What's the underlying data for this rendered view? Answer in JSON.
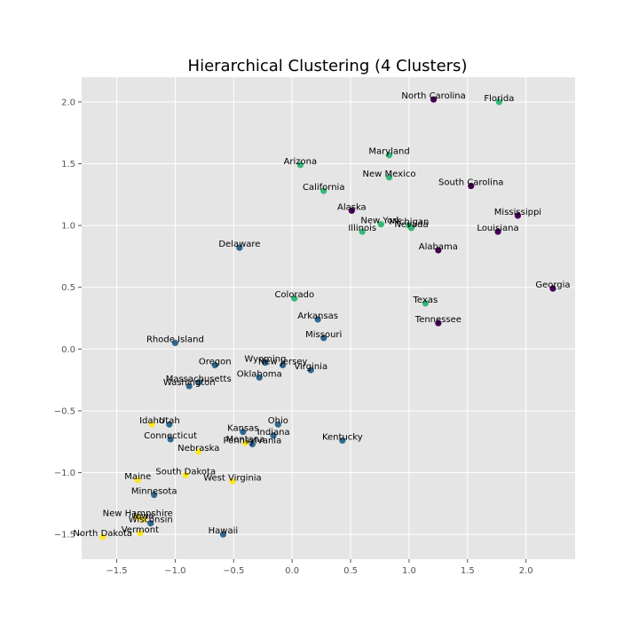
{
  "chart_data": {
    "type": "scatter",
    "title": "Hierarchical Clustering (4 Clusters)",
    "xlabel": "",
    "ylabel": "",
    "xlim": [
      -1.8,
      2.42
    ],
    "ylim": [
      -1.7,
      2.2
    ],
    "xticks": [
      -1.5,
      -1.0,
      -0.5,
      0.0,
      0.5,
      1.0,
      1.5,
      2.0
    ],
    "xtick_labels": [
      "−1.5",
      "−1.0",
      "−0.5",
      "0.0",
      "0.5",
      "1.0",
      "1.5",
      "2.0"
    ],
    "yticks": [
      -1.5,
      -1.0,
      -0.5,
      0.0,
      0.5,
      1.0,
      1.5,
      2.0
    ],
    "ytick_labels": [
      "−1.5",
      "−1.0",
      "−0.5",
      "0.0",
      "0.5",
      "1.0",
      "1.5",
      "2.0"
    ],
    "grid": true,
    "cluster_colors": {
      "0": "#440154",
      "1": "#31688e",
      "2": "#35b779",
      "3": "#fde725"
    },
    "points": [
      {
        "label": "North Carolina",
        "x": 1.21,
        "y": 2.02,
        "cluster": 0
      },
      {
        "label": "Mississippi",
        "x": 1.93,
        "y": 1.08,
        "cluster": 0
      },
      {
        "label": "South Carolina",
        "x": 1.53,
        "y": 1.32,
        "cluster": 0
      },
      {
        "label": "Alaska",
        "x": 0.51,
        "y": 1.12,
        "cluster": 0
      },
      {
        "label": "Louisiana",
        "x": 1.76,
        "y": 0.95,
        "cluster": 0
      },
      {
        "label": "Alabama",
        "x": 1.25,
        "y": 0.8,
        "cluster": 0
      },
      {
        "label": "Georgia",
        "x": 2.23,
        "y": 0.49,
        "cluster": 0
      },
      {
        "label": "Tennessee",
        "x": 1.25,
        "y": 0.21,
        "cluster": 0
      },
      {
        "label": "Florida",
        "x": 1.77,
        "y": 2.0,
        "cluster": 2
      },
      {
        "label": "Maryland",
        "x": 0.83,
        "y": 1.57,
        "cluster": 2
      },
      {
        "label": "Arizona",
        "x": 0.07,
        "y": 1.49,
        "cluster": 2
      },
      {
        "label": "New Mexico",
        "x": 0.83,
        "y": 1.39,
        "cluster": 2
      },
      {
        "label": "California",
        "x": 0.27,
        "y": 1.28,
        "cluster": 2
      },
      {
        "label": "Michigan",
        "x": 1.0,
        "y": 1.0,
        "cluster": 2
      },
      {
        "label": "New York",
        "x": 0.76,
        "y": 1.01,
        "cluster": 2
      },
      {
        "label": "Nevada",
        "x": 1.02,
        "y": 0.98,
        "cluster": 2
      },
      {
        "label": "Illinois",
        "x": 0.6,
        "y": 0.95,
        "cluster": 2
      },
      {
        "label": "Colorado",
        "x": 0.02,
        "y": 0.41,
        "cluster": 2
      },
      {
        "label": "Texas",
        "x": 1.14,
        "y": 0.37,
        "cluster": 2
      },
      {
        "label": "Delaware",
        "x": -0.45,
        "y": 0.82,
        "cluster": 1
      },
      {
        "label": "Arkansas",
        "x": 0.22,
        "y": 0.24,
        "cluster": 1
      },
      {
        "label": "Missouri",
        "x": 0.27,
        "y": 0.09,
        "cluster": 1
      },
      {
        "label": "Rhode Island",
        "x": -1.0,
        "y": 0.05,
        "cluster": 1
      },
      {
        "label": "Oregon",
        "x": -0.66,
        "y": -0.13,
        "cluster": 1
      },
      {
        "label": "Wyoming",
        "x": -0.23,
        "y": -0.11,
        "cluster": 1
      },
      {
        "label": "New Jersey",
        "x": -0.08,
        "y": -0.13,
        "cluster": 1
      },
      {
        "label": "Virginia",
        "x": 0.16,
        "y": -0.17,
        "cluster": 1
      },
      {
        "label": "Oklahoma",
        "x": -0.28,
        "y": -0.23,
        "cluster": 1
      },
      {
        "label": "Massachusetts",
        "x": -0.8,
        "y": -0.27,
        "cluster": 1
      },
      {
        "label": "Washington",
        "x": -0.88,
        "y": -0.3,
        "cluster": 1
      },
      {
        "label": "Utah",
        "x": -1.05,
        "y": -0.61,
        "cluster": 1
      },
      {
        "label": "Ohio",
        "x": -0.12,
        "y": -0.61,
        "cluster": 1
      },
      {
        "label": "Kansas",
        "x": -0.42,
        "y": -0.67,
        "cluster": 1
      },
      {
        "label": "Indiana",
        "x": -0.16,
        "y": -0.7,
        "cluster": 1
      },
      {
        "label": "Connecticut",
        "x": -1.04,
        "y": -0.73,
        "cluster": 1
      },
      {
        "label": "Kentucky",
        "x": 0.43,
        "y": -0.74,
        "cluster": 1
      },
      {
        "label": "Pennsylvania",
        "x": -0.34,
        "y": -0.77,
        "cluster": 1
      },
      {
        "label": "Minnesota",
        "x": -1.18,
        "y": -1.18,
        "cluster": 1
      },
      {
        "label": "Hawaii",
        "x": -0.59,
        "y": -1.5,
        "cluster": 1
      },
      {
        "label": "Wisconsin",
        "x": -1.21,
        "y": -1.41,
        "cluster": 1
      },
      {
        "label": "Idaho",
        "x": -1.2,
        "y": -0.61,
        "cluster": 3
      },
      {
        "label": "Montana",
        "x": -0.4,
        "y": -0.76,
        "cluster": 3
      },
      {
        "label": "Nebraska",
        "x": -0.8,
        "y": -0.83,
        "cluster": 3
      },
      {
        "label": "South Dakota",
        "x": -0.91,
        "y": -1.02,
        "cluster": 3
      },
      {
        "label": "Maine",
        "x": -1.32,
        "y": -1.06,
        "cluster": 3
      },
      {
        "label": "West Virginia",
        "x": -0.51,
        "y": -1.07,
        "cluster": 3
      },
      {
        "label": "New Hampshire",
        "x": -1.32,
        "y": -1.36,
        "cluster": 3
      },
      {
        "label": "Iowa",
        "x": -1.27,
        "y": -1.38,
        "cluster": 3
      },
      {
        "label": "Vermont",
        "x": -1.3,
        "y": -1.49,
        "cluster": 3
      },
      {
        "label": "North Dakota",
        "x": -1.62,
        "y": -1.52,
        "cluster": 3
      }
    ]
  }
}
